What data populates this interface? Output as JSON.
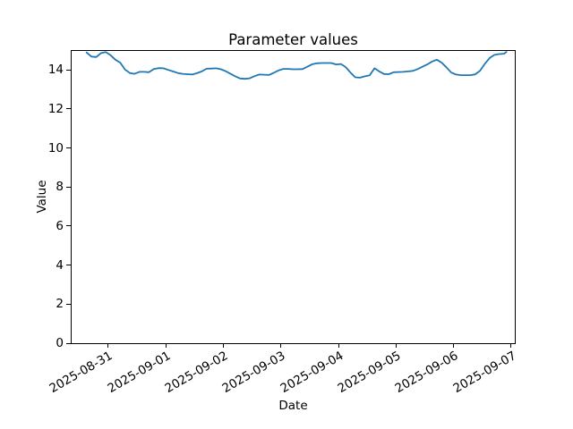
{
  "chart_data": {
    "type": "line",
    "title": "Parameter values",
    "xlabel": "Date",
    "ylabel": "Value",
    "line_color": "#1f77b4",
    "background_color": "#ffffff",
    "grid": false,
    "legend": false,
    "ylim": [
      0,
      14.97
    ],
    "xlim": [
      "2025-08-30T08:45",
      "2025-09-07T01:30"
    ],
    "yticks": [
      0,
      2,
      4,
      6,
      8,
      10,
      12,
      14
    ],
    "xticks": [
      "2025-08-31",
      "2025-09-01",
      "2025-09-02",
      "2025-09-03",
      "2025-09-04",
      "2025-09-05",
      "2025-09-06",
      "2025-09-07"
    ],
    "x": [
      "2025-08-30T15:00",
      "2025-08-30T17:00",
      "2025-08-30T19:00",
      "2025-08-30T21:00",
      "2025-08-30T23:00",
      "2025-08-31T01:00",
      "2025-08-31T03:00",
      "2025-08-31T05:00",
      "2025-08-31T07:00",
      "2025-08-31T09:00",
      "2025-08-31T11:00",
      "2025-08-31T13:00",
      "2025-08-31T15:00",
      "2025-08-31T17:00",
      "2025-08-31T19:00",
      "2025-08-31T21:00",
      "2025-08-31T23:00",
      "2025-09-01T01:00",
      "2025-09-01T03:00",
      "2025-09-01T05:00",
      "2025-09-01T07:00",
      "2025-09-01T09:00",
      "2025-09-01T11:00",
      "2025-09-01T13:00",
      "2025-09-01T15:00",
      "2025-09-01T17:00",
      "2025-09-01T19:00",
      "2025-09-01T21:00",
      "2025-09-01T23:00",
      "2025-09-02T01:00",
      "2025-09-02T03:00",
      "2025-09-02T05:00",
      "2025-09-02T07:00",
      "2025-09-02T09:00",
      "2025-09-02T11:00",
      "2025-09-02T13:00",
      "2025-09-02T15:00",
      "2025-09-02T17:00",
      "2025-09-02T19:00",
      "2025-09-02T21:00",
      "2025-09-02T23:00",
      "2025-09-03T01:00",
      "2025-09-03T03:00",
      "2025-09-03T05:00",
      "2025-09-03T07:00",
      "2025-09-03T09:00",
      "2025-09-03T11:00",
      "2025-09-03T13:00",
      "2025-09-03T15:00",
      "2025-09-03T17:00",
      "2025-09-03T19:00",
      "2025-09-03T21:00",
      "2025-09-03T23:00",
      "2025-09-04T01:00",
      "2025-09-04T03:00",
      "2025-09-04T05:00",
      "2025-09-04T07:00",
      "2025-09-04T09:00",
      "2025-09-04T11:00",
      "2025-09-04T13:00",
      "2025-09-04T15:00",
      "2025-09-04T17:00",
      "2025-09-04T19:00",
      "2025-09-04T21:00",
      "2025-09-04T23:00",
      "2025-09-05T01:00",
      "2025-09-05T03:00",
      "2025-09-05T05:00",
      "2025-09-05T07:00",
      "2025-09-05T09:00",
      "2025-09-05T11:00",
      "2025-09-05T13:00",
      "2025-09-05T15:00",
      "2025-09-05T17:00",
      "2025-09-05T19:00",
      "2025-09-05T21:00",
      "2025-09-05T23:00",
      "2025-09-06T01:00",
      "2025-09-06T03:00",
      "2025-09-06T05:00",
      "2025-09-06T07:00",
      "2025-09-06T09:00",
      "2025-09-06T11:00",
      "2025-09-06T13:00",
      "2025-09-06T15:00",
      "2025-09-06T17:00",
      "2025-09-06T19:00",
      "2025-09-06T21:00",
      "2025-09-06T22:00"
    ],
    "y": [
      14.89,
      14.68,
      14.66,
      14.86,
      14.91,
      14.75,
      14.52,
      14.37,
      14.02,
      13.84,
      13.8,
      13.9,
      13.9,
      13.88,
      14.04,
      14.09,
      14.08,
      14.0,
      13.92,
      13.84,
      13.8,
      13.78,
      13.76,
      13.83,
      13.92,
      14.06,
      14.07,
      14.08,
      14.03,
      13.93,
      13.8,
      13.67,
      13.56,
      13.54,
      13.57,
      13.68,
      13.76,
      13.75,
      13.74,
      13.85,
      13.97,
      14.05,
      14.05,
      14.03,
      14.03,
      14.04,
      14.16,
      14.29,
      14.34,
      14.35,
      14.35,
      14.35,
      14.28,
      14.3,
      14.14,
      13.86,
      13.62,
      13.6,
      13.67,
      13.72,
      14.08,
      13.92,
      13.79,
      13.78,
      13.88,
      13.89,
      13.9,
      13.92,
      13.95,
      14.04,
      14.16,
      14.28,
      14.43,
      14.52,
      14.37,
      14.13,
      13.86,
      13.76,
      13.73,
      13.73,
      13.73,
      13.77,
      13.96,
      14.31,
      14.61,
      14.77,
      14.81,
      14.83,
      14.92
    ]
  }
}
